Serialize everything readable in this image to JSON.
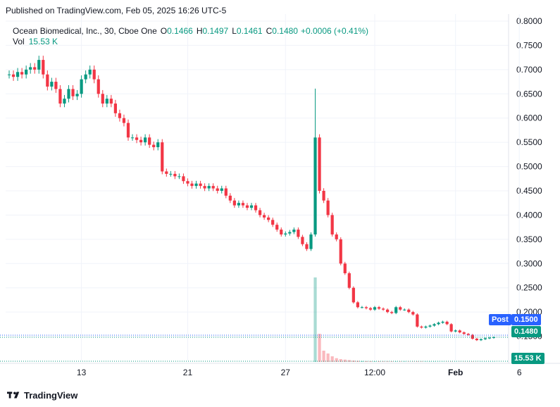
{
  "published_text": "Published on TradingView.com, Feb 05, 2025 16:26 UTC-5",
  "legend": {
    "symbol": "Ocean Biomedical, Inc., 30, Cboe One",
    "o_label": "O",
    "o_value": "0.1466",
    "h_label": "H",
    "h_value": "0.1497",
    "l_label": "L",
    "l_value": "0.1461",
    "c_label": "C",
    "c_value": "0.1480",
    "change": "+0.0006 (+0.41%)",
    "vol_label": "Vol",
    "vol_value": "15.53 K"
  },
  "badges": {
    "post_label": "Post",
    "post_price": "0.1500",
    "last_price": "0.1480",
    "volume": "15.53 K"
  },
  "footer": {
    "brand": "TradingView"
  },
  "colors": {
    "up": "#089981",
    "down": "#f23645",
    "accent": "#2962ff",
    "grid": "#f0f3fa"
  },
  "chart_data": {
    "type": "candlestick",
    "y_axis_ticks": [
      "0.8000",
      "0.7500",
      "0.7000",
      "0.6500",
      "0.6000",
      "0.5500",
      "0.5000",
      "0.4500",
      "0.4000",
      "0.3500",
      "0.3000",
      "0.2500",
      "0.2000",
      "0.1500"
    ],
    "y_range": [
      0.1,
      0.8
    ],
    "x_axis_ticks": [
      "13",
      "21",
      "27",
      "12:00",
      "Feb",
      "6"
    ],
    "x_tick_index": [
      17,
      42,
      65,
      86,
      105,
      120
    ],
    "series": [
      {
        "name": "Ocean Biomedical, Inc., 30, Cboe One",
        "close": [
          0.69,
          0.685,
          0.695,
          0.69,
          0.7,
          0.705,
          0.7,
          0.72,
          0.69,
          0.665,
          0.675,
          0.66,
          0.63,
          0.64,
          0.66,
          0.645,
          0.65,
          0.68,
          0.69,
          0.7,
          0.68,
          0.65,
          0.63,
          0.64,
          0.63,
          0.61,
          0.6,
          0.59,
          0.56,
          0.56,
          0.555,
          0.55,
          0.56,
          0.545,
          0.54,
          0.55,
          0.49,
          0.485,
          0.485,
          0.48,
          0.48,
          0.47,
          0.465,
          0.46,
          0.465,
          0.46,
          0.455,
          0.46,
          0.455,
          0.45,
          0.455,
          0.44,
          0.43,
          0.42,
          0.425,
          0.42,
          0.415,
          0.42,
          0.41,
          0.4,
          0.395,
          0.39,
          0.38,
          0.37,
          0.36,
          0.362,
          0.365,
          0.37,
          0.355,
          0.34,
          0.33,
          0.36,
          0.56,
          0.45,
          0.43,
          0.4,
          0.36,
          0.35,
          0.3,
          0.28,
          0.25,
          0.22,
          0.21,
          0.21,
          0.208,
          0.205,
          0.21,
          0.207,
          0.205,
          0.2,
          0.198,
          0.21,
          0.205,
          0.205,
          0.2,
          0.195,
          0.17,
          0.168,
          0.17,
          0.172,
          0.175,
          0.178,
          0.18,
          0.175,
          0.16,
          0.162,
          0.158,
          0.155,
          0.153,
          0.145,
          0.142,
          0.144,
          0.146,
          0.147,
          0.148
        ],
        "volume": [
          0,
          0,
          0,
          0,
          0,
          0,
          0,
          0,
          0,
          0,
          0,
          0,
          0,
          0,
          0,
          0,
          0,
          0,
          0,
          0,
          0,
          0,
          0,
          0,
          0,
          0,
          0,
          0,
          0,
          0,
          0,
          0,
          0,
          0,
          0,
          0,
          0,
          0,
          0,
          0,
          0,
          0,
          0,
          0,
          0,
          0,
          0,
          0,
          0,
          0,
          0,
          0,
          0,
          0,
          0,
          0,
          0,
          0,
          0,
          0,
          0,
          0,
          0,
          0,
          0,
          0,
          0,
          0,
          0,
          0,
          0,
          0,
          900,
          300,
          120,
          90,
          60,
          40,
          30,
          25,
          20,
          15,
          12,
          10,
          8,
          7,
          6,
          6,
          5,
          5,
          5,
          4,
          4,
          4,
          3,
          3,
          5,
          4,
          3,
          3,
          3,
          2,
          2,
          2,
          3,
          2,
          2,
          2,
          2,
          3,
          2,
          2,
          2,
          2,
          2
        ]
      }
    ]
  }
}
